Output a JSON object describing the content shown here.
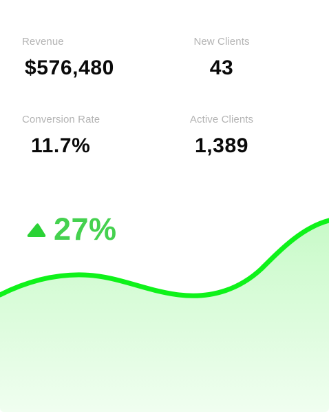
{
  "stats": {
    "revenue": {
      "label": "Revenue",
      "value": "$576,480"
    },
    "new_clients": {
      "label": "New Clients",
      "value": "43"
    },
    "conversion_rate": {
      "label": "Conversion Rate",
      "value": "11.7%"
    },
    "active_clients": {
      "label": "Active Clients",
      "value": "1,389"
    }
  },
  "trend": {
    "icon": "triangle-up-icon",
    "value": "27%",
    "direction": "up"
  },
  "colors": {
    "accent": "#45d14f",
    "line": "#0ff21a",
    "fill_top": "#ccfbcc",
    "fill_bottom": "#eefeee",
    "label": "#b3b3b3",
    "value": "#0a0a0a"
  }
}
